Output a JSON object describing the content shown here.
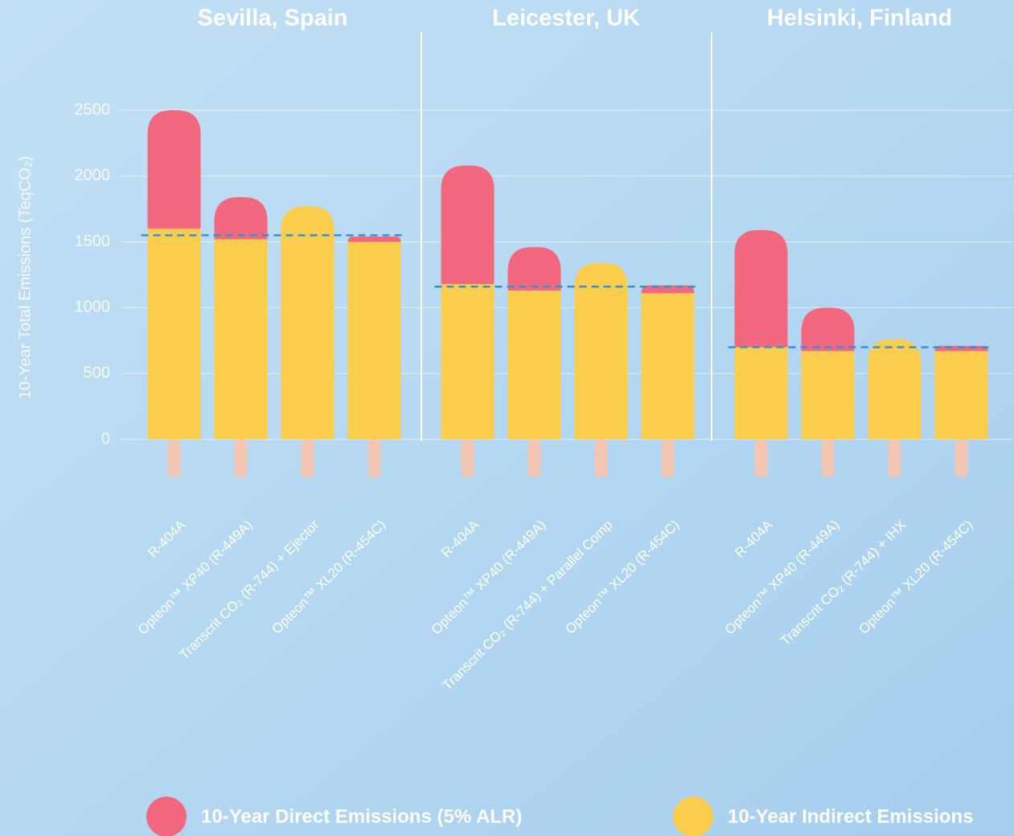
{
  "chart_data": {
    "type": "bar",
    "stacked": true,
    "ylabel": "10-Year Total Emissions (TeqCO₂)",
    "ylim": [
      0,
      2500
    ],
    "yticks": [
      0,
      500,
      1000,
      1500,
      2000,
      2500
    ],
    "grid": true,
    "panels": [
      {
        "title": "Sevilla, Spain",
        "reference": 1550
      },
      {
        "title": "Leicester, UK",
        "reference": 1160
      },
      {
        "title": "Helsinki, Finland",
        "reference": 700
      }
    ],
    "categories": [
      "R-404A",
      "Opteon™ XP40 (R-449A)",
      "Transcrit CO₂ (R-744) + Ejector",
      "Opteon™ XL20 (R-454C)",
      "R-404A",
      "Opteon™ XP40 (R-449A)",
      "Transcrit CO₂ (R-744) + Parallel Comp",
      "Opteon™ XL20 (R-454C)",
      "R-404A",
      "Opteon™ XP40 (R-449A)",
      "Transcrit CO₂ (R-744) + IHX",
      "Opteon™ XL20 (R-454C)"
    ],
    "series": [
      {
        "name": "10-Year Direct Emissions (5% ALR)",
        "color": "#f2687f",
        "values": [
          900,
          320,
          0,
          40,
          900,
          330,
          0,
          60,
          890,
          330,
          0,
          40
        ]
      },
      {
        "name": "10-Year Indirect Emissions",
        "color": "#fbcd4d",
        "values": [
          1600,
          1520,
          1770,
          1500,
          1180,
          1130,
          1340,
          1110,
          700,
          670,
          760,
          670
        ]
      }
    ]
  }
}
